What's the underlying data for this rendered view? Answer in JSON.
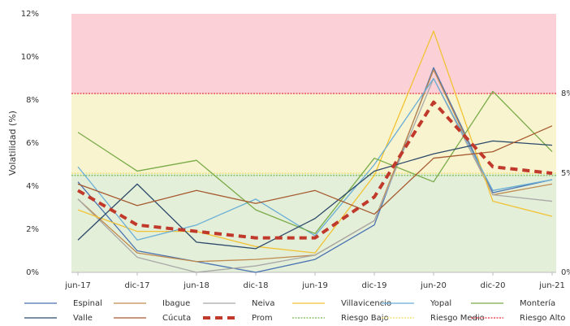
{
  "chart_data": {
    "type": "line",
    "y_label": "Volatilidad (%)",
    "categories": [
      "jun-17",
      "dic-17",
      "jun-18",
      "dic-18",
      "jun-19",
      "dic-19",
      "jun-20",
      "dic-20",
      "jun-21"
    ],
    "ylim": [
      0,
      12
    ],
    "yticks": [
      {
        "value": 0,
        "label": "0%"
      },
      {
        "value": 2,
        "label": "2%"
      },
      {
        "value": 4,
        "label": "4%"
      },
      {
        "value": 6,
        "label": "6%"
      },
      {
        "value": 8,
        "label": "8%"
      },
      {
        "value": 10,
        "label": "10%"
      },
      {
        "value": 12,
        "label": "12%"
      }
    ],
    "right_labels": [
      {
        "value": 0,
        "label": "0%"
      },
      {
        "value": 4.6,
        "label": "5%"
      },
      {
        "value": 8.3,
        "label": "8%"
      }
    ],
    "bands": [
      {
        "name": "Riesgo Bajo",
        "from": 0,
        "to": 4.6,
        "level": 4.5,
        "fill": "#e3efd9",
        "color": "#8cc46a"
      },
      {
        "name": "Riesgo Medio",
        "from": 4.6,
        "to": 8.3,
        "level": 4.6,
        "fill": "#f8f4d0",
        "color": "#f2e27a"
      },
      {
        "name": "Riesgo Alto",
        "from": 8.3,
        "to": 12,
        "level": 8.3,
        "fill": "#fbd0d6",
        "color": "#e8505a"
      }
    ],
    "series": [
      {
        "name": "Espinal",
        "color": "#4a72b0",
        "values": [
          4.2,
          1.0,
          0.5,
          0.0,
          0.6,
          2.2,
          9.5,
          3.7,
          4.3
        ]
      },
      {
        "name": "Ibague",
        "color": "#c08a4e",
        "values": [
          3.4,
          0.9,
          0.5,
          0.6,
          0.8,
          2.4,
          9.4,
          3.6,
          4.1
        ]
      },
      {
        "name": "Neiva",
        "color": "#a8a8a8",
        "values": [
          3.4,
          0.7,
          0.0,
          0.3,
          0.8,
          2.4,
          9.0,
          3.6,
          3.3
        ]
      },
      {
        "name": "Villavicencio",
        "color": "#f2c233",
        "values": [
          2.9,
          1.9,
          1.9,
          1.2,
          0.9,
          4.5,
          11.2,
          3.3,
          2.6
        ]
      },
      {
        "name": "Yopal",
        "color": "#6aaed6",
        "values": [
          4.9,
          1.5,
          2.2,
          3.4,
          1.7,
          5.0,
          9.0,
          3.8,
          4.3
        ]
      },
      {
        "name": "Montería",
        "color": "#7aab48",
        "values": [
          6.5,
          4.7,
          5.2,
          2.9,
          1.8,
          5.3,
          4.2,
          8.4,
          5.6
        ]
      },
      {
        "name": "Valle",
        "color": "#2d4a6a",
        "values": [
          1.5,
          4.1,
          1.4,
          1.1,
          2.5,
          4.7,
          5.5,
          6.1,
          5.9
        ]
      },
      {
        "name": "Cúcuta",
        "color": "#a65a30",
        "values": [
          4.1,
          3.1,
          3.8,
          3.2,
          3.8,
          2.7,
          5.3,
          5.6,
          6.8
        ]
      },
      {
        "name": "Prom",
        "color": "#c0392b",
        "dashed": true,
        "values": [
          3.8,
          2.2,
          1.9,
          1.6,
          1.6,
          3.5,
          7.9,
          4.9,
          4.6
        ]
      }
    ]
  }
}
